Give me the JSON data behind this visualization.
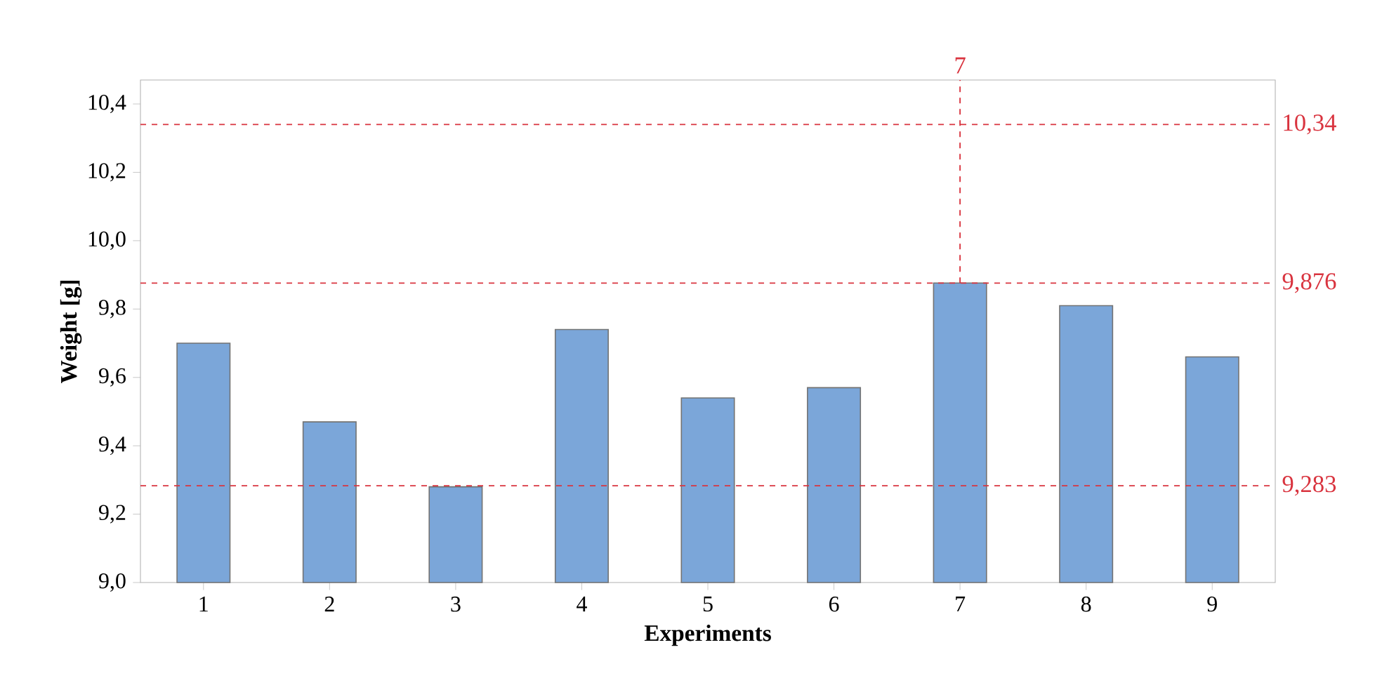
{
  "chart_data": {
    "type": "bar",
    "xlabel": "Experiments",
    "ylabel": "Weight [g]",
    "x": [
      1,
      2,
      3,
      4,
      5,
      6,
      7,
      8,
      9
    ],
    "values": [
      9.7,
      9.47,
      9.28,
      9.74,
      9.54,
      9.57,
      9.876,
      9.81,
      9.66
    ],
    "color": "#7ba6d9",
    "xlim": [
      0.5,
      9.5
    ],
    "xticks": [
      1,
      2,
      3,
      4,
      5,
      6,
      7,
      8,
      9
    ],
    "ylim": [
      9.0,
      10.47
    ],
    "yticks": [
      {
        "value": 9.0,
        "label": "9,0"
      },
      {
        "value": 9.2,
        "label": "9,2"
      },
      {
        "value": 9.4,
        "label": "9,4"
      },
      {
        "value": 9.6,
        "label": "9,6"
      },
      {
        "value": 9.8,
        "label": "9,8"
      },
      {
        "value": 10.0,
        "label": "10,0"
      },
      {
        "value": 10.2,
        "label": "10,2"
      },
      {
        "value": 10.4,
        "label": "10,4"
      }
    ],
    "ref_lines": [
      {
        "axis": "y",
        "value": 10.34,
        "label": "10,34",
        "color": "#d9343f",
        "line_style": "dashed"
      },
      {
        "axis": "y",
        "value": 9.876,
        "label": "9,876",
        "color": "#d9343f",
        "line_style": "dashed"
      },
      {
        "axis": "y",
        "value": 9.283,
        "label": "9,283",
        "color": "#d9343f",
        "line_style": "dashed"
      },
      {
        "axis": "x",
        "value": 7,
        "label": "7",
        "color": "#d9343f",
        "line_style": "dashed"
      }
    ],
    "grid": false
  }
}
